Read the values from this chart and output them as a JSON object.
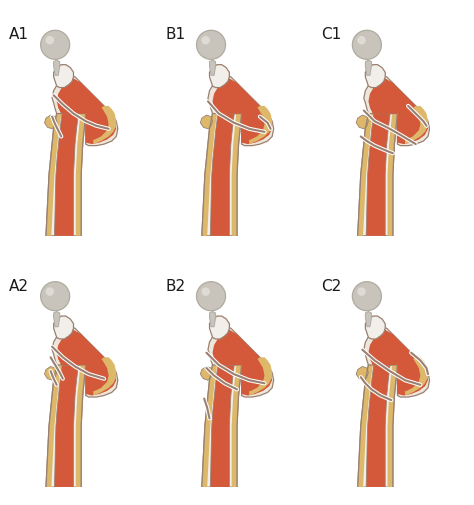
{
  "labels": [
    "A1",
    "B1",
    "C1",
    "A2",
    "B2",
    "C2"
  ],
  "bg_color": "#ffffff",
  "bone_ivory": "#f2eeea",
  "bone_cortex": "#ede6da",
  "marrow_orange": "#d4593a",
  "periosteal_yellow": "#ddb86a",
  "periosteal_light": "#e8cc88",
  "outline_color": "#9a8070",
  "head_gray": "#c8c4bc",
  "head_highlight": "#dedad4",
  "head_shadow": "#b0aaa0",
  "label_fontsize": 11,
  "label_color": "#1a1a1a"
}
